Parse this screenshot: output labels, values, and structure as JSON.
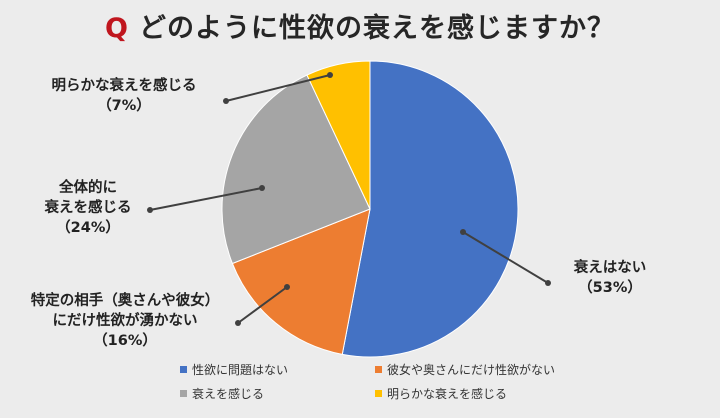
{
  "title": {
    "prefix": "Q",
    "text": "どのように性欲の衰えを感じますか？"
  },
  "chart_data": {
    "type": "pie",
    "start": "top",
    "direction": "clockwise",
    "slices": [
      {
        "legend": "性欲に問題はない",
        "callout": [
          "衰えはない",
          "（53%）"
        ],
        "value": 53,
        "color": "#4472c4"
      },
      {
        "legend": "彼女や奥さんにだけ性欲がない",
        "callout": [
          "特定の相手（奥さんや彼女）",
          "にだけ性欲が湧かない",
          "（16%）"
        ],
        "value": 16,
        "color": "#ed7d31"
      },
      {
        "legend": "衰えを感じる",
        "callout": [
          "全体的に",
          "衰えを感じる",
          "（24%）"
        ],
        "value": 24,
        "color": "#a5a5a5"
      },
      {
        "legend": "明らかな衰えを感じる",
        "callout": [
          "明らかな衰えを感じる",
          "（7%）"
        ],
        "value": 7,
        "color": "#ffc000"
      }
    ]
  }
}
